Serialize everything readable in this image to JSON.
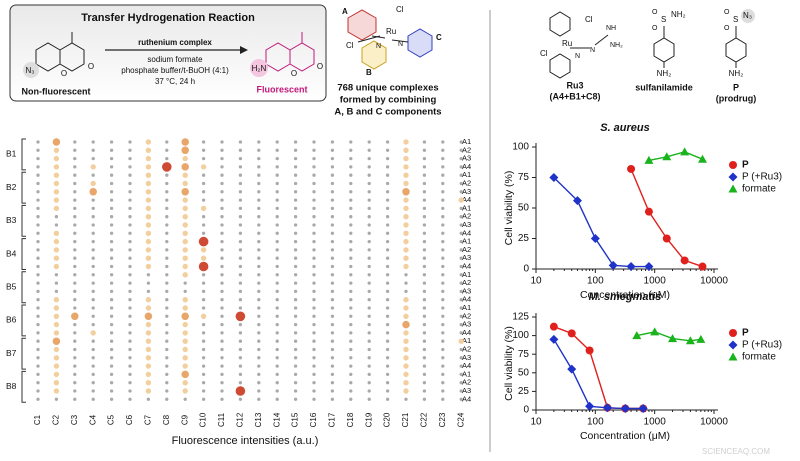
{
  "scheme": {
    "title": "Transfer Hydrogenation Reaction",
    "reagents": [
      "ruthenium complex",
      "sodium formate",
      "phosphate buffer/t-BuOH (4:1)",
      "37 °C, 24 h"
    ],
    "left_label": "Non-fluorescent",
    "right_label": "Fluorescent",
    "left_atoms": [
      "N₃",
      "O",
      "O"
    ],
    "right_atoms": [
      "H₂N",
      "O",
      "O"
    ],
    "complex_atoms": [
      "A",
      "B",
      "C",
      "Cl",
      "Ru",
      "N",
      "N",
      "Cl"
    ],
    "caption": [
      "768 unique complexes",
      "formed by combining",
      "A, B and C components"
    ]
  },
  "structures": {
    "ru3_atoms": [
      "Cl",
      "Ru",
      "Cl",
      "N",
      "N",
      "NH",
      "NH₂"
    ],
    "ru3_name": "Ru3",
    "ru3_formula": "(A4+B1+C8)",
    "sulfanilamide_atoms": [
      "O",
      "O",
      "S",
      "NH₂",
      "NH₂"
    ],
    "sulfanilamide_name": "sulfanilamide",
    "prodrug_atoms": [
      "O",
      "O",
      "S",
      "N₃",
      "NH₂"
    ],
    "prodrug_name": "P",
    "prodrug_note": "(prodrug)"
  },
  "chart_data": [
    {
      "type": "dot-matrix",
      "xlabel": "Fluorescence intensities (a.u.)",
      "categories": [
        "C1",
        "C2",
        "C3",
        "C4",
        "C5",
        "C6",
        "C7",
        "C8",
        "C9",
        "C10",
        "C11",
        "C12",
        "C13",
        "C14",
        "C15",
        "C16",
        "C17",
        "C18",
        "C19",
        "C20",
        "C21",
        "C22",
        "C23",
        "C24"
      ],
      "row_labels": [
        "A1",
        "A2",
        "A3",
        "A4",
        "A1",
        "A2",
        "A3",
        "A4",
        "A1",
        "A2",
        "A3",
        "A4",
        "A1",
        "A2",
        "A3",
        "A4",
        "A1",
        "A2",
        "A3",
        "A4",
        "A1",
        "A2",
        "A3",
        "A4",
        "A1",
        "A2",
        "A3",
        "A4",
        "A1",
        "A2",
        "A3",
        "A4"
      ],
      "groups": [
        "B1",
        "B2",
        "B3",
        "B4",
        "B5",
        "B6",
        "B7",
        "B8"
      ],
      "colors": [
        "#a9a9a9",
        "#f2cf9e",
        "#e9a66a",
        "#cf4a32"
      ],
      "values": [
        [
          1,
          3,
          1,
          1,
          1,
          1,
          2,
          1,
          3,
          1,
          1,
          1,
          1,
          1,
          1,
          1,
          1,
          1,
          1,
          1,
          2,
          1,
          1,
          1
        ],
        [
          1,
          2,
          1,
          1,
          1,
          1,
          2,
          1,
          3,
          1,
          1,
          1,
          1,
          1,
          1,
          1,
          1,
          1,
          1,
          1,
          2,
          1,
          1,
          1
        ],
        [
          1,
          2,
          1,
          1,
          1,
          1,
          2,
          1,
          2,
          1,
          1,
          1,
          1,
          1,
          1,
          1,
          1,
          1,
          1,
          1,
          2,
          1,
          1,
          1
        ],
        [
          1,
          2,
          1,
          2,
          1,
          1,
          2,
          4,
          3,
          2,
          1,
          1,
          1,
          1,
          1,
          1,
          1,
          1,
          1,
          1,
          2,
          1,
          1,
          1
        ],
        [
          1,
          2,
          1,
          1,
          1,
          1,
          2,
          1,
          2,
          1,
          1,
          1,
          1,
          1,
          1,
          1,
          1,
          1,
          1,
          1,
          2,
          1,
          1,
          1
        ],
        [
          1,
          2,
          1,
          2,
          1,
          1,
          2,
          1,
          2,
          1,
          1,
          1,
          1,
          1,
          1,
          1,
          1,
          1,
          1,
          1,
          2,
          1,
          1,
          1
        ],
        [
          1,
          2,
          1,
          3,
          1,
          1,
          2,
          1,
          3,
          1,
          1,
          1,
          1,
          1,
          1,
          1,
          1,
          1,
          1,
          1,
          3,
          1,
          1,
          1
        ],
        [
          1,
          2,
          1,
          1,
          1,
          1,
          2,
          1,
          2,
          1,
          1,
          1,
          1,
          1,
          1,
          1,
          1,
          1,
          1,
          1,
          2,
          1,
          1,
          2
        ],
        [
          1,
          2,
          1,
          1,
          1,
          1,
          2,
          1,
          2,
          2,
          1,
          1,
          1,
          1,
          1,
          1,
          1,
          1,
          1,
          1,
          2,
          1,
          1,
          1
        ],
        [
          1,
          1,
          1,
          1,
          1,
          1,
          2,
          1,
          2,
          1,
          1,
          1,
          1,
          1,
          1,
          1,
          1,
          1,
          1,
          1,
          2,
          1,
          1,
          1
        ],
        [
          1,
          1,
          1,
          1,
          1,
          1,
          2,
          1,
          2,
          1,
          1,
          1,
          1,
          1,
          1,
          1,
          1,
          1,
          1,
          1,
          2,
          1,
          1,
          1
        ],
        [
          1,
          2,
          1,
          1,
          1,
          1,
          2,
          1,
          2,
          1,
          1,
          1,
          1,
          1,
          1,
          1,
          1,
          1,
          1,
          1,
          2,
          1,
          1,
          1
        ],
        [
          1,
          2,
          1,
          1,
          1,
          1,
          2,
          1,
          2,
          4,
          1,
          1,
          1,
          1,
          1,
          1,
          1,
          1,
          1,
          1,
          2,
          1,
          1,
          1
        ],
        [
          1,
          2,
          1,
          1,
          1,
          1,
          2,
          1,
          2,
          2,
          1,
          1,
          1,
          1,
          1,
          1,
          1,
          1,
          1,
          1,
          2,
          1,
          1,
          1
        ],
        [
          1,
          2,
          1,
          1,
          1,
          1,
          2,
          1,
          2,
          2,
          1,
          1,
          1,
          1,
          1,
          1,
          1,
          1,
          1,
          1,
          2,
          1,
          1,
          1
        ],
        [
          1,
          2,
          1,
          1,
          1,
          1,
          2,
          1,
          2,
          4,
          1,
          1,
          1,
          1,
          1,
          1,
          1,
          1,
          1,
          1,
          2,
          1,
          1,
          1
        ],
        [
          1,
          1,
          1,
          1,
          1,
          1,
          1,
          1,
          2,
          1,
          1,
          1,
          1,
          1,
          1,
          1,
          1,
          1,
          1,
          1,
          1,
          1,
          1,
          1
        ],
        [
          1,
          1,
          1,
          1,
          1,
          1,
          1,
          1,
          1,
          1,
          1,
          1,
          1,
          1,
          1,
          1,
          1,
          1,
          1,
          1,
          1,
          1,
          1,
          1
        ],
        [
          1,
          1,
          1,
          1,
          1,
          1,
          1,
          1,
          1,
          1,
          1,
          1,
          1,
          1,
          1,
          1,
          1,
          1,
          1,
          1,
          1,
          1,
          1,
          1
        ],
        [
          1,
          2,
          1,
          1,
          1,
          1,
          2,
          1,
          2,
          1,
          1,
          1,
          1,
          1,
          1,
          1,
          1,
          1,
          1,
          1,
          2,
          1,
          1,
          1
        ],
        [
          1,
          2,
          1,
          1,
          1,
          1,
          2,
          1,
          2,
          1,
          1,
          1,
          1,
          1,
          1,
          1,
          1,
          1,
          1,
          1,
          2,
          1,
          1,
          1
        ],
        [
          1,
          2,
          3,
          1,
          1,
          1,
          3,
          1,
          3,
          2,
          1,
          4,
          1,
          1,
          1,
          1,
          1,
          1,
          1,
          1,
          2,
          1,
          1,
          1
        ],
        [
          1,
          2,
          1,
          1,
          1,
          1,
          2,
          1,
          2,
          1,
          1,
          1,
          1,
          1,
          1,
          1,
          1,
          1,
          1,
          1,
          3,
          1,
          1,
          1
        ],
        [
          1,
          2,
          1,
          2,
          1,
          1,
          2,
          1,
          2,
          1,
          1,
          1,
          1,
          1,
          1,
          1,
          1,
          1,
          1,
          1,
          2,
          1,
          1,
          1
        ],
        [
          1,
          3,
          1,
          1,
          1,
          1,
          2,
          1,
          2,
          1,
          1,
          1,
          1,
          1,
          1,
          1,
          1,
          1,
          1,
          1,
          2,
          1,
          1,
          2
        ],
        [
          1,
          2,
          1,
          1,
          1,
          1,
          2,
          1,
          2,
          1,
          1,
          1,
          1,
          1,
          1,
          1,
          1,
          1,
          1,
          1,
          2,
          1,
          1,
          1
        ],
        [
          1,
          2,
          1,
          1,
          1,
          1,
          2,
          1,
          2,
          1,
          1,
          1,
          1,
          1,
          1,
          1,
          1,
          1,
          1,
          1,
          2,
          1,
          1,
          1
        ],
        [
          1,
          2,
          1,
          1,
          1,
          1,
          2,
          1,
          2,
          1,
          1,
          1,
          1,
          1,
          1,
          1,
          1,
          1,
          1,
          1,
          2,
          1,
          1,
          1
        ],
        [
          1,
          2,
          1,
          1,
          1,
          1,
          2,
          1,
          3,
          1,
          1,
          1,
          1,
          1,
          1,
          1,
          1,
          1,
          1,
          1,
          2,
          1,
          1,
          1
        ],
        [
          1,
          2,
          1,
          1,
          1,
          1,
          2,
          1,
          2,
          1,
          1,
          1,
          1,
          1,
          1,
          1,
          1,
          1,
          1,
          1,
          2,
          1,
          1,
          1
        ],
        [
          1,
          2,
          1,
          1,
          1,
          1,
          2,
          1,
          2,
          1,
          1,
          4,
          1,
          1,
          1,
          1,
          1,
          1,
          1,
          1,
          2,
          1,
          1,
          1
        ],
        [
          1,
          1,
          1,
          1,
          1,
          1,
          1,
          1,
          1,
          1,
          1,
          1,
          1,
          1,
          1,
          1,
          1,
          1,
          1,
          1,
          1,
          1,
          1,
          1
        ]
      ]
    },
    {
      "type": "line",
      "title": "S. aureus",
      "xlabel": "Concentration (μM)",
      "ylabel": "Cell viability (%)",
      "xscale": "log",
      "xlim": [
        10,
        10000
      ],
      "xticks": [
        10,
        100,
        1000,
        10000
      ],
      "ylim": [
        0,
        100
      ],
      "yticks": [
        0,
        25,
        50,
        75,
        100
      ],
      "legend": "right",
      "series": [
        {
          "name": "P",
          "color": "#e0201c",
          "marker": "circle",
          "x": [
            400,
            800,
            1600,
            3200,
            6400
          ],
          "values": [
            82,
            47,
            25,
            7,
            2
          ]
        },
        {
          "name": "P (+Ru3)",
          "color": "#1f33c8",
          "marker": "diamond",
          "x": [
            20,
            50,
            100,
            200,
            400,
            800
          ],
          "values": [
            75,
            56,
            25,
            3,
            2,
            2
          ]
        },
        {
          "name": "formate",
          "color": "#19b31c",
          "marker": "triangle",
          "x": [
            800,
            1600,
            3200,
            6400
          ],
          "values": [
            89,
            92,
            96,
            90
          ]
        }
      ]
    },
    {
      "type": "line",
      "title": "M. smegmatis",
      "xlabel": "Concentration (μM)",
      "ylabel": "Cell viability (%)",
      "xscale": "log",
      "xlim": [
        10,
        10000
      ],
      "xticks": [
        10,
        100,
        1000,
        10000
      ],
      "ylim": [
        0,
        125
      ],
      "yticks": [
        0,
        25,
        50,
        75,
        100,
        125
      ],
      "legend": "right",
      "series": [
        {
          "name": "P",
          "color": "#e0201c",
          "marker": "circle",
          "x": [
            20,
            40,
            80,
            160,
            320,
            640
          ],
          "values": [
            112,
            103,
            80,
            3,
            2,
            2
          ]
        },
        {
          "name": "P (+Ru3)",
          "color": "#1f33c8",
          "marker": "diamond",
          "x": [
            20,
            40,
            80,
            160,
            320,
            640
          ],
          "values": [
            95,
            55,
            5,
            3,
            2,
            2
          ]
        },
        {
          "name": "formate",
          "color": "#19b31c",
          "marker": "triangle",
          "x": [
            500,
            1000,
            2000,
            4000,
            6000
          ],
          "values": [
            100,
            105,
            96,
            93,
            95
          ]
        }
      ]
    }
  ],
  "watermark": "SCIENCEAQ.COM"
}
